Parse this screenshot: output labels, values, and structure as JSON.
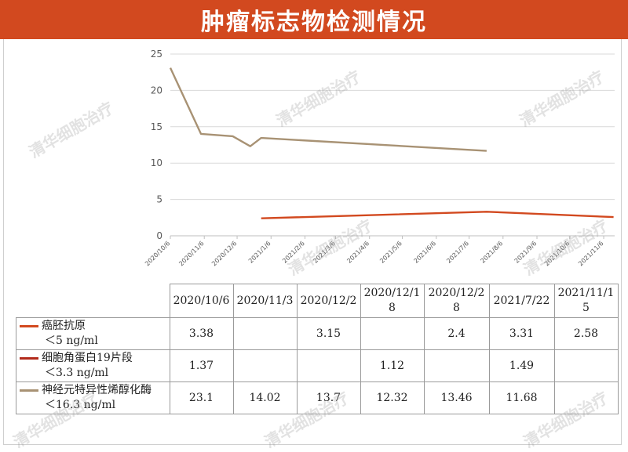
{
  "title": "肿瘤标志物检测情况",
  "watermark": "清华细胞治疗",
  "chart_data": {
    "type": "line",
    "x_ticks": [
      "2020/10/6",
      "2020/11/6",
      "2020/12/6",
      "2021/1/6",
      "2021/2/6",
      "2021/3/6",
      "2021/4/6",
      "2021/5/6",
      "2021/6/6",
      "2021/7/6",
      "2021/8/6",
      "2021/9/6",
      "2021/10/6",
      "2021/11/6"
    ],
    "y_ticks": [
      0,
      5,
      10,
      15,
      20,
      25
    ],
    "ylim": [
      0,
      25
    ],
    "xlim": [
      "2020/10/6",
      "2021/11/16"
    ],
    "grid": "horizontal",
    "series": [
      {
        "name": "癌胚抗原",
        "color": "#d2491f",
        "points": [
          {
            "x": "2020/12/28",
            "y": 2.4
          },
          {
            "x": "2021/7/22",
            "y": 3.31
          },
          {
            "x": "2021/11/15",
            "y": 2.58
          }
        ]
      },
      {
        "name": "神经元特异性烯醇化酶",
        "color": "#a89274",
        "points": [
          {
            "x": "2020/10/6",
            "y": 23.1
          },
          {
            "x": "2020/11/3",
            "y": 14.02
          },
          {
            "x": "2020/12/2",
            "y": 13.7
          },
          {
            "x": "2020/12/18",
            "y": 12.32
          },
          {
            "x": "2020/12/28",
            "y": 13.46
          },
          {
            "x": "2021/7/22",
            "y": 11.68
          }
        ]
      }
    ]
  },
  "table": {
    "columns": [
      "2020/10/6",
      "2020/11/3",
      "2020/12/2",
      "2020/12/18",
      "2020/12/28",
      "2021/7/22",
      "2021/11/15"
    ],
    "column_display": [
      "2020/10/6",
      "2020/11/3",
      "2020/12/2",
      "2020/12/1\n8",
      "2020/12/2\n8",
      "2021/7/22",
      "2021/11/1\n5"
    ],
    "rows": [
      {
        "label": "癌胚抗原",
        "reference": "＜5 ng/ml",
        "color": "#d2491f",
        "values": [
          "3.38",
          "",
          "3.15",
          "",
          "2.4",
          "3.31",
          "2.58"
        ]
      },
      {
        "label": "细胞角蛋白19片段",
        "reference": "＜3.3 ng/ml",
        "color": "#b22a1a",
        "values": [
          "1.37",
          "",
          "",
          "1.12",
          "",
          "1.49",
          ""
        ]
      },
      {
        "label": "神经元特异性烯醇化酶",
        "reference": "＜16.3 ng/ml",
        "color": "#a89274",
        "values": [
          "23.1",
          "14.02",
          "13.7",
          "12.32",
          "13.46",
          "11.68",
          ""
        ]
      }
    ]
  }
}
